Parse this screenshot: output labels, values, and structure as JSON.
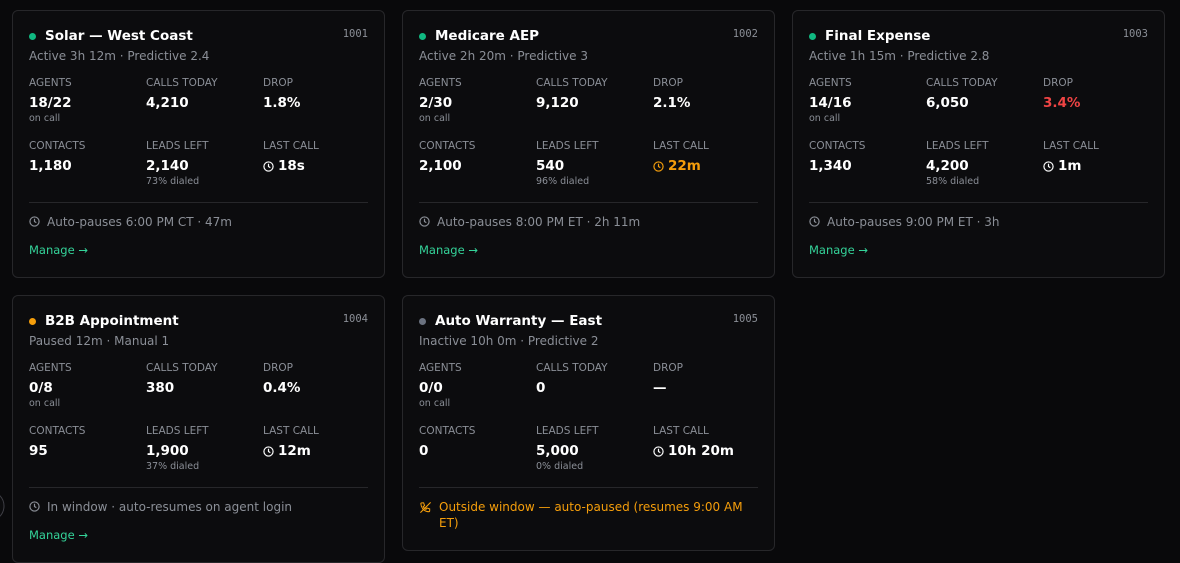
{
  "cards": [
    {
      "name": "Solar — West Coast",
      "id": "1001",
      "dot_color": "#10b981",
      "subtitle": "Active 3h 12m · Predictive 2.4",
      "stats": [
        {
          "label": "AGENTS",
          "value": "18/22",
          "sub": "on call"
        },
        {
          "label": "CALLS TODAY",
          "value": "4,210"
        },
        {
          "label": "DROP",
          "value": "1.8%"
        },
        {
          "label": "CONTACTS",
          "value": "1,180"
        },
        {
          "label": "LEADS LEFT",
          "value": "2,140",
          "sub": "73% dialed"
        },
        {
          "label": "LAST CALL",
          "value": "18s"
        }
      ],
      "footer": "Auto-pauses 6:00 PM CT · 47m",
      "action": "Manage →"
    },
    {
      "name": "Medicare AEP",
      "id": "1002",
      "dot_color": "#10b981",
      "subtitle": "Active 2h 20m · Predictive 3",
      "stats": [
        {
          "label": "AGENTS",
          "value": "2/30",
          "sub": "on call"
        },
        {
          "label": "CALLS TODAY",
          "value": "9,120"
        },
        {
          "label": "DROP",
          "value": "2.1%"
        },
        {
          "label": "CONTACTS",
          "value": "2,100"
        },
        {
          "label": "LEADS LEFT",
          "value": "540",
          "sub": "96% dialed"
        },
        {
          "label": "LAST CALL",
          "value": "22m",
          "color": "#f59e0b"
        }
      ],
      "footer": "Auto-pauses 8:00 PM ET · 2h 11m",
      "action": "Manage →"
    },
    {
      "name": "Final Expense",
      "id": "1003",
      "dot_color": "#10b981",
      "subtitle": "Active 1h 15m · Predictive 2.8",
      "stats": [
        {
          "label": "AGENTS",
          "value": "14/16",
          "sub": "on call"
        },
        {
          "label": "CALLS TODAY",
          "value": "6,050"
        },
        {
          "label": "DROP",
          "value": "3.4%",
          "color": "#ef4444"
        },
        {
          "label": "CONTACTS",
          "value": "1,340"
        },
        {
          "label": "LEADS LEFT",
          "value": "4,200",
          "sub": "58% dialed"
        },
        {
          "label": "LAST CALL",
          "value": "1m"
        }
      ],
      "footer": "Auto-pauses 9:00 PM ET · 3h",
      "action": "Manage →"
    },
    {
      "name": "B2B Appointment",
      "id": "1004",
      "dot_color": "#f59e0b",
      "subtitle": "Paused 12m · Manual 1",
      "stats": [
        {
          "label": "AGENTS",
          "value": "0/8",
          "sub": "on call"
        },
        {
          "label": "CALLS TODAY",
          "value": "380"
        },
        {
          "label": "DROP",
          "value": "0.4%"
        },
        {
          "label": "CONTACTS",
          "value": "95"
        },
        {
          "label": "LEADS LEFT",
          "value": "1,900",
          "sub": "37% dialed"
        },
        {
          "label": "LAST CALL",
          "value": "12m"
        }
      ],
      "footer": "In window · auto-resumes on agent login",
      "action": "Manage →"
    },
    {
      "name": "Auto Warranty — East",
      "id": "1005",
      "dot_color": "#6b7280",
      "subtitle": "Inactive 10h 0m · Predictive 2",
      "stats": [
        {
          "label": "AGENTS",
          "value": "0/0",
          "sub": "on call"
        },
        {
          "label": "CALLS TODAY",
          "value": "0"
        },
        {
          "label": "DROP",
          "value": "—"
        },
        {
          "label": "CONTACTS",
          "value": "0"
        },
        {
          "label": "LEADS LEFT",
          "value": "5,000",
          "sub": "0% dialed"
        },
        {
          "label": "LAST CALL",
          "value": "10h 20m"
        }
      ],
      "footer": "Outside window — auto-paused (resumes 9:00 AM ET)",
      "footer_color": "#f59e0b"
    }
  ]
}
